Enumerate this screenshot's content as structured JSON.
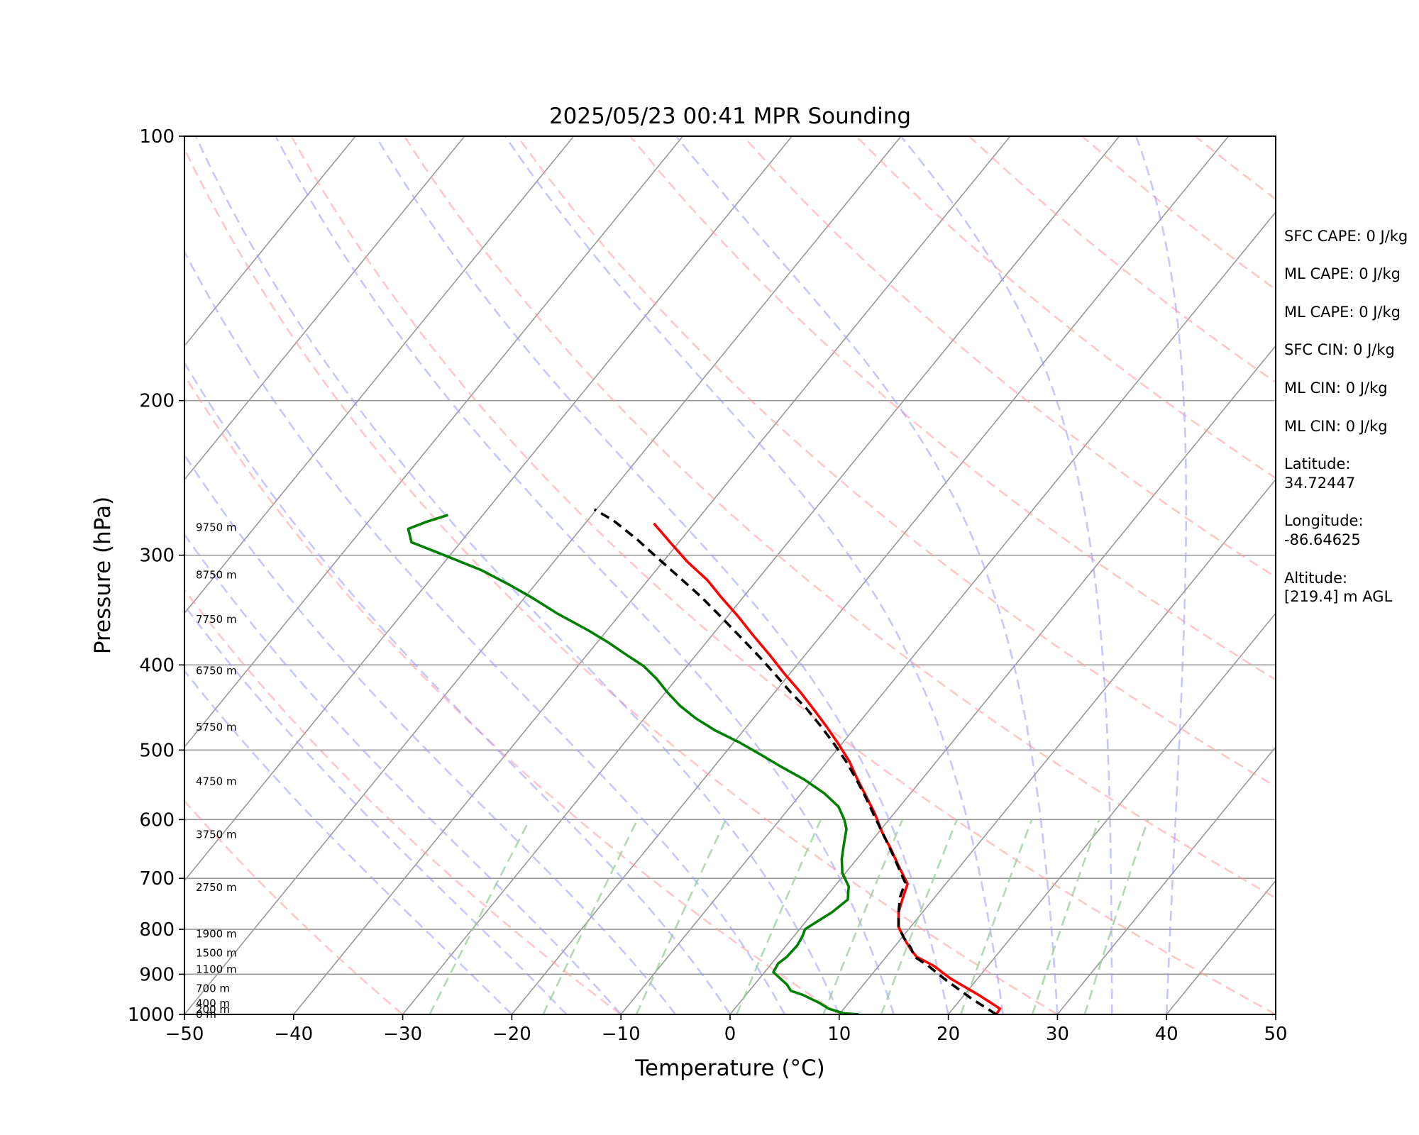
{
  "chart_data": {
    "type": "line",
    "title": "2025/05/23 00:41 MPR Sounding",
    "xlabel": "Temperature (°C)",
    "ylabel": "Pressure (hPa)",
    "xlim": [
      -50,
      50
    ],
    "ylim": [
      1000,
      100
    ],
    "y_scale": "log",
    "skew": "skew-T",
    "x_ticks": [
      "−50",
      "−40",
      "−30",
      "−20",
      "−10",
      "0",
      "10",
      "20",
      "30",
      "40",
      "50"
    ],
    "y_ticks": [
      "100",
      "200",
      "300",
      "400",
      "500",
      "600",
      "700",
      "800",
      "900",
      "1000"
    ],
    "grid": true,
    "colors": {
      "temperature": "#ff0000",
      "dewpoint": "#008000",
      "parcel": "#000000",
      "dry_adiabats": "#ff9999",
      "moist_adiabats": "#9999ff",
      "mixing_ratio": "#99cc99",
      "isotherms": "#999999",
      "isobars": "#999999"
    },
    "height_labels": [
      "9750 m",
      "8750 m",
      "7750 m",
      "6750 m",
      "5750 m",
      "4750 m",
      "3750 m",
      "2750 m",
      "1900 m",
      "1500 m",
      "1100 m",
      "700 m",
      "400 m",
      "200 m",
      "0 m"
    ],
    "height_label_pressures": [
      279,
      316,
      355,
      406,
      471,
      543,
      624,
      717,
      810,
      851,
      889,
      934,
      972,
      987,
      1000
    ],
    "series": [
      {
        "key": "temperature",
        "points": [
          [
            24.4,
            1000
          ],
          [
            24.3,
            985
          ],
          [
            21.3,
            950
          ],
          [
            17.5,
            910
          ],
          [
            15.0,
            880
          ],
          [
            12.8,
            860
          ],
          [
            11.8,
            845
          ],
          [
            10.3,
            820
          ],
          [
            8.9,
            795
          ],
          [
            7.8,
            765
          ],
          [
            7.2,
            740
          ],
          [
            6.5,
            710
          ],
          [
            4.5,
            680
          ],
          [
            2.5,
            650
          ],
          [
            0.3,
            620
          ],
          [
            -1.8,
            590
          ],
          [
            -3.8,
            565
          ],
          [
            -5.9,
            540
          ],
          [
            -8.0,
            515
          ],
          [
            -10.3,
            492
          ],
          [
            -12.7,
            470
          ],
          [
            -15.2,
            449
          ],
          [
            -17.6,
            430
          ],
          [
            -20.4,
            410
          ],
          [
            -23.2,
            390
          ],
          [
            -26.1,
            371
          ],
          [
            -28.9,
            353
          ],
          [
            -32.0,
            335
          ],
          [
            -34.6,
            320
          ],
          [
            -37.8,
            305
          ],
          [
            -40.8,
            290
          ],
          [
            -43.7,
            276
          ]
        ]
      },
      {
        "key": "dewpoint",
        "points": [
          [
            11.8,
            1000
          ],
          [
            10.3,
            997
          ],
          [
            8.6,
            985
          ],
          [
            7.3,
            970
          ],
          [
            5.2,
            950
          ],
          [
            3.8,
            940
          ],
          [
            3.0,
            925
          ],
          [
            0.8,
            895
          ],
          [
            0.6,
            875
          ],
          [
            0.9,
            860
          ],
          [
            1.0,
            835
          ],
          [
            0.8,
            815
          ],
          [
            0.5,
            800
          ],
          [
            1.0,
            785
          ],
          [
            1.7,
            765
          ],
          [
            2.2,
            740
          ],
          [
            1.3,
            715
          ],
          [
            -0.3,
            690
          ],
          [
            -1.4,
            665
          ],
          [
            -2.3,
            640
          ],
          [
            -3.2,
            615
          ],
          [
            -4.1,
            600
          ],
          [
            -5.6,
            580
          ],
          [
            -7.9,
            560
          ],
          [
            -10.8,
            540
          ],
          [
            -13.9,
            522
          ],
          [
            -16.8,
            505
          ],
          [
            -19.5,
            490
          ],
          [
            -22.6,
            475
          ],
          [
            -25.3,
            460
          ],
          [
            -27.7,
            445
          ],
          [
            -29.8,
            430
          ],
          [
            -31.8,
            415
          ],
          [
            -34.0,
            401
          ],
          [
            -36.3,
            390
          ],
          [
            -39.0,
            377
          ],
          [
            -41.8,
            365
          ],
          [
            -45.7,
            350
          ],
          [
            -49.4,
            335
          ],
          [
            -52.4,
            324
          ],
          [
            -56.0,
            312
          ],
          [
            -61.3,
            298
          ],
          [
            -64.5,
            290
          ],
          [
            -65.8,
            280
          ],
          [
            -64.7,
            275
          ],
          [
            -63.2,
            270
          ]
        ]
      },
      {
        "key": "parcel",
        "points": [
          [
            24.4,
            1000
          ],
          [
            21.0,
            960
          ],
          [
            17.3,
            915
          ],
          [
            14.5,
            880
          ],
          [
            12.6,
            860
          ],
          [
            11.6,
            840
          ],
          [
            10.2,
            818
          ],
          [
            8.9,
            795
          ],
          [
            7.8,
            765
          ],
          [
            6.8,
            735
          ],
          [
            6.2,
            708
          ],
          [
            4.3,
            678
          ],
          [
            2.3,
            648
          ],
          [
            0.3,
            620
          ],
          [
            -1.8,
            592
          ],
          [
            -3.8,
            566
          ],
          [
            -6.0,
            540
          ],
          [
            -8.3,
            515
          ],
          [
            -10.7,
            492
          ],
          [
            -13.2,
            470
          ],
          [
            -15.8,
            449
          ],
          [
            -18.5,
            430
          ],
          [
            -21.3,
            410
          ],
          [
            -24.3,
            390
          ],
          [
            -27.4,
            371
          ],
          [
            -30.5,
            353
          ],
          [
            -33.8,
            335
          ],
          [
            -37.1,
            319
          ],
          [
            -40.6,
            303
          ],
          [
            -44.0,
            288
          ],
          [
            -47.6,
            274
          ],
          [
            -50.2,
            266
          ]
        ]
      }
    ]
  },
  "info_lines": [
    "SFC CAPE: 0 J/kg",
    "ML CAPE: 0 J/kg",
    "ML CAPE: 0 J/kg",
    "SFC CIN: 0 J/kg",
    "ML CIN: 0 J/kg",
    "ML CIN: 0 J/kg",
    "Latitude:",
    "34.72447",
    "Longitude:",
    "-86.64625",
    "Altitude:",
    "[219.4] m AGL"
  ]
}
